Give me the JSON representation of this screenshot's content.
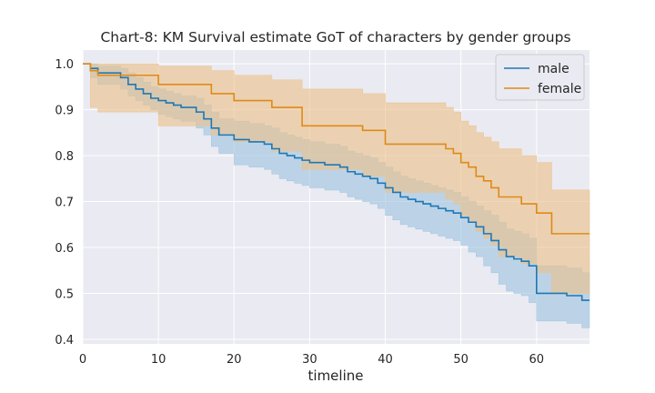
{
  "chart_data": {
    "type": "line",
    "title": "Chart-8: KM Survival estimate GoT of characters by gender groups",
    "xlabel": "timeline",
    "ylabel": "",
    "xlim": [
      0,
      67
    ],
    "ylim": [
      0.39,
      1.03
    ],
    "xticks": [
      0,
      10,
      20,
      30,
      40,
      50,
      60
    ],
    "yticks": [
      0.4,
      0.5,
      0.6,
      0.7,
      0.8,
      0.9,
      1.0
    ],
    "xtick_labels": [
      "0",
      "10",
      "20",
      "30",
      "40",
      "50",
      "60"
    ],
    "ytick_labels": [
      "0.4",
      "0.5",
      "0.6",
      "0.7",
      "0.8",
      "0.9",
      "1.0"
    ],
    "grid": true,
    "legend_position": "top-right",
    "series": [
      {
        "name": "male",
        "color": "#1f77b4",
        "band_color": "#9fc5e1",
        "x": [
          0,
          1,
          2,
          5,
          6,
          7,
          8,
          9,
          10,
          11,
          12,
          13,
          15,
          16,
          17,
          18,
          20,
          22,
          24,
          25,
          26,
          27,
          28,
          29,
          30,
          32,
          34,
          35,
          36,
          37,
          38,
          39,
          40,
          41,
          42,
          43,
          44,
          45,
          46,
          47,
          48,
          49,
          50,
          51,
          52,
          53,
          54,
          55,
          56,
          57,
          58,
          59,
          60,
          63,
          64,
          66,
          67
        ],
        "y": [
          1.0,
          0.99,
          0.98,
          0.97,
          0.955,
          0.945,
          0.935,
          0.925,
          0.92,
          0.915,
          0.91,
          0.905,
          0.895,
          0.88,
          0.86,
          0.845,
          0.835,
          0.83,
          0.825,
          0.815,
          0.805,
          0.8,
          0.795,
          0.79,
          0.785,
          0.78,
          0.775,
          0.765,
          0.76,
          0.755,
          0.75,
          0.74,
          0.73,
          0.72,
          0.71,
          0.705,
          0.7,
          0.695,
          0.69,
          0.685,
          0.68,
          0.675,
          0.665,
          0.655,
          0.645,
          0.63,
          0.615,
          0.595,
          0.58,
          0.575,
          0.57,
          0.56,
          0.5,
          0.5,
          0.495,
          0.485,
          0.485
        ],
        "ci_lower": [
          1.0,
          0.97,
          0.955,
          0.945,
          0.93,
          0.92,
          0.91,
          0.9,
          0.89,
          0.885,
          0.88,
          0.875,
          0.86,
          0.845,
          0.82,
          0.805,
          0.78,
          0.775,
          0.77,
          0.76,
          0.75,
          0.745,
          0.74,
          0.735,
          0.73,
          0.725,
          0.72,
          0.71,
          0.705,
          0.7,
          0.695,
          0.685,
          0.67,
          0.66,
          0.65,
          0.645,
          0.64,
          0.635,
          0.63,
          0.625,
          0.62,
          0.615,
          0.605,
          0.59,
          0.58,
          0.56,
          0.545,
          0.52,
          0.505,
          0.5,
          0.495,
          0.48,
          0.44,
          0.44,
          0.435,
          0.425,
          0.425
        ],
        "ci_upper": [
          1.0,
          1.0,
          0.995,
          0.99,
          0.98,
          0.97,
          0.96,
          0.95,
          0.945,
          0.94,
          0.935,
          0.93,
          0.925,
          0.91,
          0.895,
          0.88,
          0.875,
          0.87,
          0.865,
          0.86,
          0.85,
          0.845,
          0.84,
          0.835,
          0.83,
          0.825,
          0.82,
          0.81,
          0.805,
          0.8,
          0.795,
          0.785,
          0.775,
          0.765,
          0.755,
          0.75,
          0.745,
          0.74,
          0.735,
          0.73,
          0.725,
          0.72,
          0.71,
          0.7,
          0.69,
          0.68,
          0.67,
          0.655,
          0.64,
          0.635,
          0.63,
          0.62,
          0.56,
          0.56,
          0.555,
          0.545,
          0.545
        ]
      },
      {
        "name": "female",
        "color": "#e08a16",
        "band_color": "#ecc28a",
        "x": [
          0,
          1,
          2,
          10,
          17,
          20,
          25,
          29,
          37,
          40,
          48,
          49,
          50,
          51,
          52,
          53,
          54,
          55,
          58,
          60,
          62,
          67
        ],
        "y": [
          1.0,
          0.985,
          0.975,
          0.955,
          0.935,
          0.92,
          0.905,
          0.865,
          0.855,
          0.825,
          0.815,
          0.805,
          0.785,
          0.775,
          0.755,
          0.745,
          0.73,
          0.71,
          0.695,
          0.675,
          0.63,
          0.63
        ],
        "ci_lower": [
          1.0,
          0.905,
          0.895,
          0.865,
          0.845,
          0.83,
          0.81,
          0.77,
          0.755,
          0.72,
          0.705,
          0.695,
          0.67,
          0.655,
          0.635,
          0.62,
          0.605,
          0.58,
          0.565,
          0.545,
          0.5,
          0.5
        ],
        "ci_upper": [
          1.0,
          1.0,
          1.0,
          0.995,
          0.985,
          0.975,
          0.965,
          0.945,
          0.935,
          0.915,
          0.905,
          0.895,
          0.875,
          0.865,
          0.85,
          0.84,
          0.83,
          0.815,
          0.8,
          0.785,
          0.725,
          0.725
        ]
      }
    ]
  }
}
